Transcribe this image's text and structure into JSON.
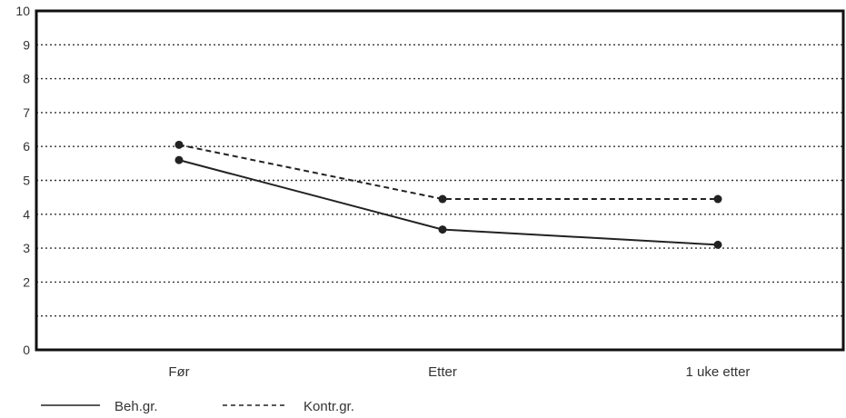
{
  "chart_data": {
    "type": "line",
    "categories": [
      "Før",
      "Etter",
      "1 uke etter"
    ],
    "ylim": [
      0,
      10
    ],
    "yticks": [
      {
        "value": 0,
        "label": "0"
      },
      {
        "value": 2,
        "label": "2"
      },
      {
        "value": 3,
        "label": "3"
      },
      {
        "value": 4,
        "label": "4"
      },
      {
        "value": 5,
        "label": "5"
      },
      {
        "value": 6,
        "label": "6"
      },
      {
        "value": 7,
        "label": "7"
      },
      {
        "value": 8,
        "label": "8"
      },
      {
        "value": 9,
        "label": "9"
      },
      {
        "value": 10,
        "label": "10"
      }
    ],
    "gridlines": [
      1,
      2,
      3,
      4,
      5,
      6,
      7,
      8,
      9
    ],
    "grid": true,
    "legend_position": "bottom-left",
    "series": [
      {
        "name": "Beh.gr.",
        "style": "solid",
        "values": [
          5.6,
          3.55,
          3.1
        ]
      },
      {
        "name": "Kontr.gr.",
        "style": "dashed",
        "values": [
          6.05,
          4.45,
          4.45
        ]
      }
    ],
    "title": "",
    "xlabel": "",
    "ylabel": ""
  },
  "colors": {
    "line": "#222222",
    "grid": "#333333",
    "frame": "#111111"
  }
}
